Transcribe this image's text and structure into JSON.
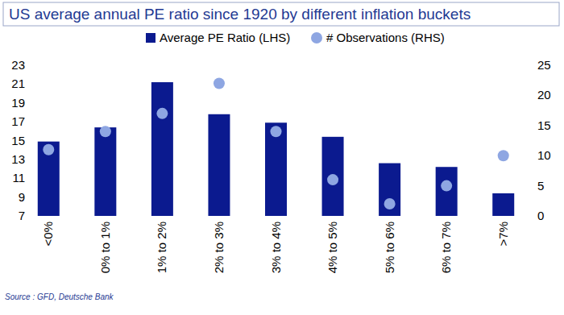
{
  "chart_data": {
    "type": "bar",
    "title": "US average annual PE ratio since 1920 by different inflation buckets",
    "source": "Source : GFD, Deutsche Bank",
    "categories": [
      "<0%",
      "0% to 1%",
      "1% to 2%",
      "2% to 3%",
      "3% to 4%",
      "4% to 5%",
      "5% to 6%",
      "6% to 7%",
      ">7%"
    ],
    "series": [
      {
        "name": "Average PE Ratio (LHS)",
        "type": "bar",
        "color": "#0b1a8f",
        "axis": "y",
        "values": [
          14.9,
          16.4,
          21.2,
          17.8,
          16.9,
          15.4,
          12.6,
          12.2,
          9.4
        ]
      },
      {
        "name": "# Observations (RHS)",
        "type": "scatter",
        "marker": "circle",
        "color": "#8ea6e2",
        "axis": "y2",
        "values": [
          11,
          14,
          17,
          22,
          14,
          6,
          2,
          5,
          10
        ]
      }
    ],
    "ylim": [
      7,
      23
    ],
    "yticks": [
      7,
      9,
      11,
      13,
      15,
      17,
      19,
      21,
      23
    ],
    "y2lim": [
      0,
      25
    ],
    "y2ticks": [
      0,
      5,
      10,
      15,
      20,
      25
    ],
    "legend": "top",
    "grid": false
  }
}
